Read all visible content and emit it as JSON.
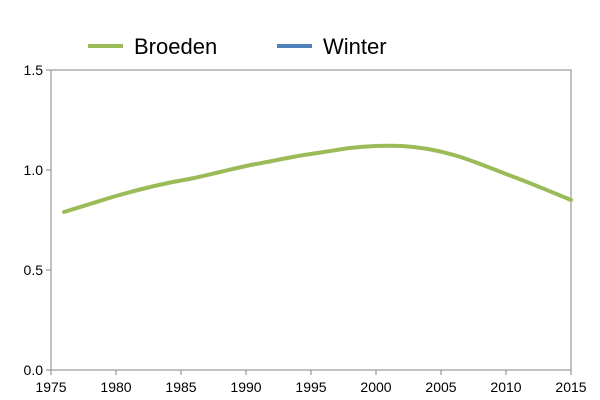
{
  "chart_data": {
    "type": "line",
    "title": "",
    "xlabel": "",
    "ylabel": "",
    "xlim": [
      1975,
      2015
    ],
    "ylim": [
      0.0,
      1.5
    ],
    "x_ticks": [
      "1975",
      "1980",
      "1985",
      "1990",
      "1995",
      "2000",
      "2005",
      "2010",
      "2015"
    ],
    "y_ticks": [
      "0.0",
      "0.5",
      "1.0",
      "1.5"
    ],
    "grid": false,
    "legend_position": "top",
    "series": [
      {
        "name": "Broeden",
        "color": "#9bbb59",
        "x": [
          1976,
          1978,
          1980,
          1982,
          1984,
          1986,
          1988,
          1990,
          1992,
          1994,
          1996,
          1998,
          2000,
          2002,
          2004,
          2006,
          2008,
          2010,
          2012,
          2015
        ],
        "y": [
          0.79,
          0.83,
          0.87,
          0.905,
          0.935,
          0.96,
          0.99,
          1.02,
          1.045,
          1.07,
          1.09,
          1.11,
          1.12,
          1.12,
          1.105,
          1.075,
          1.03,
          0.98,
          0.93,
          0.85
        ]
      },
      {
        "name": "Winter",
        "color": "#4f81bd",
        "x": [],
        "y": []
      }
    ]
  }
}
